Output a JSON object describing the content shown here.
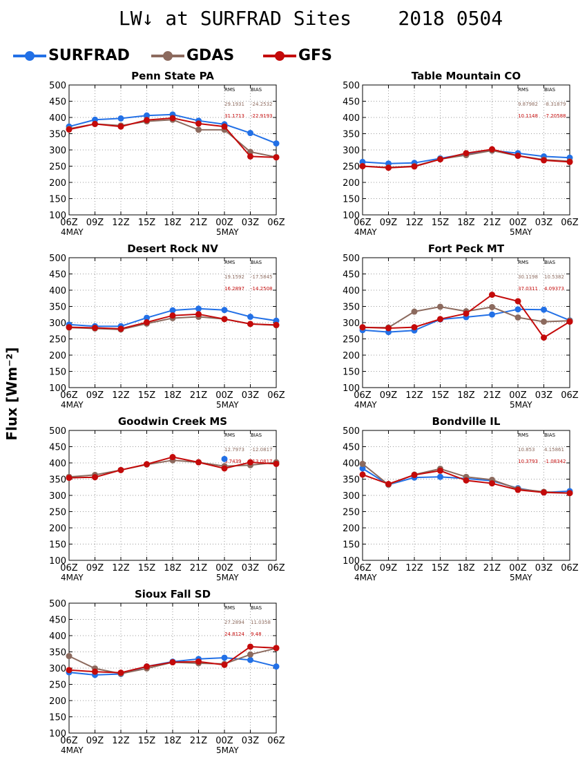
{
  "title": "LW↓ at SURFRAD Sites    2018 0504",
  "ylabel": "Flux [Wm⁻²]",
  "legend": [
    {
      "label": "SURFRAD",
      "color": "#2270e6"
    },
    {
      "label": "GDAS",
      "color": "#8c6a5e"
    },
    {
      "label": "GFS",
      "color": "#c40a0a"
    }
  ],
  "stats_headers": {
    "rms": "RMS",
    "bias": "BIAS"
  },
  "chart_data": [
    {
      "type": "line",
      "title": "Penn State PA",
      "categories": [
        "06Z",
        "09Z",
        "12Z",
        "15Z",
        "18Z",
        "21Z",
        "00Z",
        "03Z",
        "06Z"
      ],
      "date_labels": [
        "4MAY",
        "5MAY"
      ],
      "ylim": [
        100,
        500
      ],
      "yticks": [
        100,
        150,
        200,
        250,
        300,
        350,
        400,
        450,
        500
      ],
      "grid": true,
      "stats": [
        {
          "series": "GDAS",
          "rms": "29.1931",
          "bias": "-24.2532"
        },
        {
          "series": "GFS",
          "rms": "31.1713",
          "bias": "-22.9193"
        }
      ],
      "series": [
        {
          "name": "SURFRAD",
          "values": [
            372,
            393,
            397,
            406,
            409,
            390,
            379,
            352,
            320
          ]
        },
        {
          "name": "GDAS",
          "values": [
            365,
            380,
            375,
            388,
            393,
            362,
            362,
            294,
            278
          ]
        },
        {
          "name": "GFS",
          "values": [
            363,
            380,
            372,
            392,
            398,
            381,
            372,
            280,
            277
          ]
        }
      ]
    },
    {
      "type": "line",
      "title": "Table Mountain CO",
      "categories": [
        "06Z",
        "09Z",
        "12Z",
        "15Z",
        "18Z",
        "21Z",
        "00Z",
        "03Z",
        "06Z"
      ],
      "date_labels": [
        "4MAY",
        "5MAY"
      ],
      "ylim": [
        100,
        500
      ],
      "yticks": [
        100,
        150,
        200,
        250,
        300,
        350,
        400,
        450,
        500
      ],
      "grid": true,
      "stats": [
        {
          "series": "GDAS",
          "rms": "9.87982",
          "bias": "-8.31879"
        },
        {
          "series": "GFS",
          "rms": "10.1148",
          "bias": "-7.20588"
        }
      ],
      "series": [
        {
          "name": "SURFRAD",
          "values": [
            263,
            258,
            260,
            274,
            288,
            298,
            290,
            280,
            276
          ]
        },
        {
          "name": "GDAS",
          "values": [
            250,
            246,
            250,
            272,
            284,
            298,
            282,
            270,
            265
          ]
        },
        {
          "name": "GFS",
          "values": [
            250,
            245,
            249,
            271,
            290,
            302,
            282,
            268,
            263
          ]
        }
      ]
    },
    {
      "type": "line",
      "title": "Desert Rock NV",
      "categories": [
        "06Z",
        "09Z",
        "12Z",
        "15Z",
        "18Z",
        "21Z",
        "00Z",
        "03Z",
        "06Z"
      ],
      "date_labels": [
        "4MAY",
        "5MAY"
      ],
      "ylim": [
        100,
        500
      ],
      "yticks": [
        100,
        150,
        200,
        250,
        300,
        350,
        400,
        450,
        500
      ],
      "grid": true,
      "stats": [
        {
          "series": "GDAS",
          "rms": "19.1592",
          "bias": "-17.5845"
        },
        {
          "series": "GFS",
          "rms": "16.2897",
          "bias": "-14.2508"
        }
      ],
      "series": [
        {
          "name": "SURFRAD",
          "values": [
            294,
            289,
            289,
            315,
            338,
            343,
            339,
            318,
            306
          ]
        },
        {
          "name": "GDAS",
          "values": [
            285,
            282,
            279,
            297,
            314,
            318,
            311,
            296,
            292
          ]
        },
        {
          "name": "GFS",
          "values": [
            286,
            284,
            281,
            301,
            322,
            326,
            311,
            296,
            293
          ]
        }
      ]
    },
    {
      "type": "line",
      "title": "Fort Peck MT",
      "categories": [
        "06Z",
        "09Z",
        "12Z",
        "15Z",
        "18Z",
        "21Z",
        "00Z",
        "03Z",
        "06Z"
      ],
      "date_labels": [
        "4MAY",
        "5MAY"
      ],
      "ylim": [
        100,
        500
      ],
      "yticks": [
        100,
        150,
        200,
        250,
        300,
        350,
        400,
        450,
        500
      ],
      "grid": true,
      "stats": [
        {
          "series": "GDAS",
          "rms": "30.1198",
          "bias": "10.5382"
        },
        {
          "series": "GFS",
          "rms": "37.0311",
          "bias": "4.09373"
        }
      ],
      "series": [
        {
          "name": "SURFRAD",
          "values": [
            277,
            271,
            276,
            310,
            317,
            325,
            341,
            340,
            307
          ]
        },
        {
          "name": "GDAS",
          "values": [
            285,
            285,
            334,
            349,
            335,
            348,
            316,
            303,
            306
          ]
        },
        {
          "name": "GFS",
          "values": [
            286,
            283,
            286,
            311,
            328,
            386,
            366,
            254,
            303
          ]
        }
      ]
    },
    {
      "type": "line",
      "title": "Goodwin Creek MS",
      "categories": [
        "06Z",
        "09Z",
        "12Z",
        "15Z",
        "18Z",
        "21Z",
        "00Z",
        "03Z",
        "06Z"
      ],
      "date_labels": [
        "4MAY",
        "5MAY"
      ],
      "ylim": [
        100,
        500
      ],
      "yticks": [
        100,
        150,
        200,
        250,
        300,
        350,
        400,
        450,
        500
      ],
      "grid": true,
      "stats": [
        {
          "series": "GDAS",
          "rms": "12.7973",
          "bias": "-12.0817"
        },
        {
          "series": "GFS",
          "rms": "9.7439",
          "bias": "-13.0817"
        }
      ],
      "series": [
        {
          "name": "SURFRAD",
          "values": [
            null,
            null,
            null,
            null,
            null,
            null,
            412,
            null,
            null
          ]
        },
        {
          "name": "GDAS",
          "values": [
            357,
            363,
            378,
            395,
            408,
            402,
            390,
            393,
            402
          ]
        },
        {
          "name": "GFS",
          "values": [
            354,
            356,
            378,
            396,
            418,
            402,
            383,
            402,
            397
          ]
        }
      ]
    },
    {
      "type": "line",
      "title": "Bondville IL",
      "categories": [
        "06Z",
        "09Z",
        "12Z",
        "15Z",
        "18Z",
        "21Z",
        "00Z",
        "03Z",
        "06Z"
      ],
      "date_labels": [
        "4MAY",
        "5MAY"
      ],
      "ylim": [
        100,
        500
      ],
      "yticks": [
        100,
        150,
        200,
        250,
        300,
        350,
        400,
        450,
        500
      ],
      "grid": true,
      "stats": [
        {
          "series": "GDAS",
          "rms": "10.853",
          "bias": "4.15861"
        },
        {
          "series": "GFS",
          "rms": "10.3793",
          "bias": "-1.08342"
        }
      ],
      "series": [
        {
          "name": "SURFRAD",
          "values": [
            383,
            333,
            355,
            357,
            352,
            345,
            322,
            309,
            313
          ]
        },
        {
          "name": "GDAS",
          "values": [
            397,
            333,
            364,
            382,
            357,
            348,
            320,
            311,
            307
          ]
        },
        {
          "name": "GFS",
          "values": [
            364,
            335,
            363,
            376,
            346,
            337,
            317,
            309,
            307
          ]
        }
      ]
    },
    {
      "type": "line",
      "title": "Sioux Fall SD",
      "categories": [
        "06Z",
        "09Z",
        "12Z",
        "15Z",
        "18Z",
        "21Z",
        "00Z",
        "03Z",
        "06Z"
      ],
      "date_labels": [
        "4MAY",
        "5MAY"
      ],
      "ylim": [
        100,
        500
      ],
      "yticks": [
        100,
        150,
        200,
        250,
        300,
        350,
        400,
        450,
        500
      ],
      "grid": true,
      "stats": [
        {
          "series": "GDAS",
          "rms": "27.2894",
          "bias": "11.0358"
        },
        {
          "series": "GFS",
          "rms": "24.8124",
          "bias": "9.48"
        }
      ],
      "series": [
        {
          "name": "SURFRAD",
          "values": [
            287,
            279,
            282,
            305,
            320,
            328,
            332,
            325,
            305
          ]
        },
        {
          "name": "GDAS",
          "values": [
            337,
            299,
            283,
            299,
            318,
            315,
            313,
            342,
            361
          ]
        },
        {
          "name": "GFS",
          "values": [
            294,
            289,
            286,
            305,
            318,
            320,
            310,
            366,
            362
          ]
        }
      ]
    }
  ]
}
